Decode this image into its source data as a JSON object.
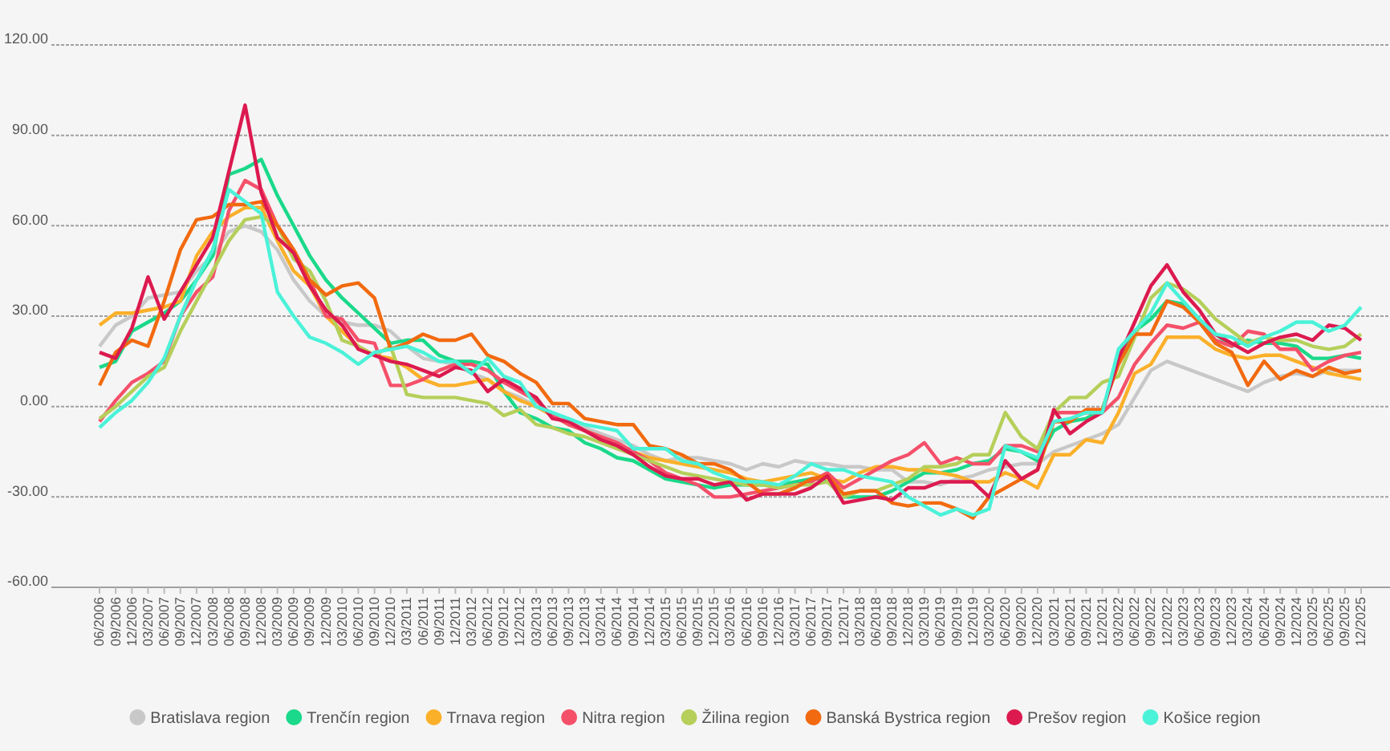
{
  "chart_data": {
    "type": "line",
    "categories": [
      "06/2006",
      "09/2006",
      "12/2006",
      "03/2007",
      "06/2007",
      "09/2007",
      "12/2007",
      "03/2008",
      "06/2008",
      "09/2008",
      "12/2008",
      "03/2009",
      "06/2009",
      "09/2009",
      "12/2009",
      "03/2010",
      "06/2010",
      "09/2010",
      "12/2010",
      "03/2011",
      "06/2011",
      "09/2011",
      "12/2011",
      "03/2012",
      "06/2012",
      "09/2012",
      "12/2012",
      "03/2013",
      "06/2013",
      "09/2013",
      "12/2013",
      "03/2014",
      "06/2014",
      "09/2014",
      "12/2014",
      "03/2015",
      "06/2015",
      "09/2015",
      "12/2015",
      "03/2016",
      "06/2016",
      "09/2016",
      "12/2016",
      "03/2017",
      "06/2017",
      "09/2017",
      "12/2017",
      "03/2018",
      "06/2018",
      "09/2018",
      "12/2018",
      "03/2019",
      "06/2019",
      "09/2019",
      "12/2019",
      "03/2020",
      "06/2020",
      "09/2020",
      "12/2020",
      "03/2021",
      "06/2021",
      "09/2021",
      "12/2021",
      "03/2022",
      "06/2022",
      "09/2022",
      "12/2022",
      "03/2023",
      "06/2023",
      "09/2023",
      "12/2023",
      "03/2024",
      "06/2024",
      "09/2024",
      "12/2024",
      "03/2025",
      "06/2025",
      "09/2025",
      "12/2025"
    ],
    "ylim": [
      -60,
      120
    ],
    "yticks": [
      {
        "value": -60,
        "label": "-60.00"
      },
      {
        "value": -30,
        "label": "-30.00"
      },
      {
        "value": 0,
        "label": "0.00"
      },
      {
        "value": 30,
        "label": "30.00"
      },
      {
        "value": 60,
        "label": "60.00"
      },
      {
        "value": 90,
        "label": "90.00"
      },
      {
        "value": 120,
        "label": "120.00"
      }
    ],
    "grid": "y",
    "legend": "bottom",
    "marker": "none",
    "line_style": "solid",
    "series": [
      {
        "name": "Bratislava region",
        "color": "#c8c8c8",
        "values": [
          20,
          27,
          30,
          36,
          37,
          38,
          45,
          50,
          58,
          60,
          58,
          52,
          42,
          35,
          30,
          28,
          27,
          27,
          25,
          20,
          16,
          15,
          14,
          11,
          9,
          5,
          3,
          0,
          -3,
          -5,
          -7,
          -9,
          -11,
          -13,
          -16,
          -18,
          -17,
          -17,
          -18,
          -19,
          -21,
          -19,
          -20,
          -18,
          -19,
          -19,
          -20,
          -20,
          -21,
          -21,
          -25,
          -25,
          -26,
          -24,
          -23,
          -21,
          -20,
          -19,
          -19,
          -15,
          -13,
          -11,
          -9,
          -6,
          3,
          12,
          15,
          13,
          11,
          9,
          7,
          5,
          8,
          10,
          11,
          10,
          12,
          12,
          12
        ]
      },
      {
        "name": "Trenčín region",
        "color": "#1ad98a",
        "values": [
          13,
          15,
          25,
          28,
          31,
          35,
          42,
          50,
          77,
          79,
          82,
          70,
          60,
          50,
          42,
          36,
          31,
          26,
          21,
          22,
          22,
          17,
          15,
          15,
          14,
          5,
          -2,
          -4,
          -7,
          -8,
          -12,
          -14,
          -17,
          -18,
          -21,
          -24,
          -25,
          -26,
          -27,
          -26,
          -26,
          -26,
          -26,
          -25,
          -24,
          -24,
          -30,
          -30,
          -30,
          -28,
          -25,
          -22,
          -22,
          -21,
          -19,
          -18,
          -14,
          -15,
          -18,
          -8,
          -5,
          -4,
          -1,
          15,
          25,
          29,
          35,
          34,
          28,
          24,
          20,
          22,
          21,
          21,
          20,
          16,
          16,
          17,
          16
        ]
      },
      {
        "name": "Trnava region",
        "color": "#fbb02a",
        "values": [
          27,
          31,
          31,
          32,
          33,
          35,
          50,
          58,
          63,
          66,
          66,
          55,
          45,
          40,
          30,
          25,
          20,
          17,
          16,
          13,
          9,
          7,
          7,
          8,
          9,
          5,
          2,
          0,
          -3,
          -6,
          -8,
          -10,
          -13,
          -15,
          -17,
          -18,
          -19,
          -20,
          -21,
          -22,
          -24,
          -25,
          -24,
          -23,
          -22,
          -24,
          -25,
          -22,
          -20,
          -20,
          -21,
          -21,
          -22,
          -23,
          -25,
          -25,
          -22,
          -24,
          -27,
          -16,
          -16,
          -11,
          -12,
          -2,
          11,
          14,
          23,
          23,
          23,
          19,
          17,
          16,
          17,
          17,
          15,
          13,
          11,
          10,
          9
        ]
      },
      {
        "name": "Nitra region",
        "color": "#f5506a",
        "values": [
          -5,
          2,
          8,
          11,
          15,
          30,
          38,
          43,
          65,
          75,
          72,
          60,
          52,
          42,
          30,
          29,
          22,
          21,
          7,
          7,
          9,
          12,
          14,
          14,
          12,
          8,
          5,
          2,
          -3,
          -6,
          -8,
          -10,
          -12,
          -15,
          -18,
          -22,
          -24,
          -26,
          -30,
          -30,
          -29,
          -28,
          -27,
          -26,
          -25,
          -22,
          -27,
          -24,
          -21,
          -18,
          -16,
          -12,
          -19,
          -17,
          -19,
          -19,
          -13,
          -13,
          -15,
          -2,
          -2,
          -2,
          -2,
          3,
          14,
          21,
          27,
          26,
          28,
          22,
          20,
          25,
          24,
          19,
          19,
          12,
          15,
          17,
          18
        ]
      },
      {
        "name": "Žilina region",
        "color": "#b5cf5a",
        "values": [
          -4,
          0,
          5,
          10,
          13,
          25,
          35,
          45,
          55,
          62,
          63,
          60,
          49,
          45,
          35,
          22,
          20,
          17,
          20,
          4,
          3,
          3,
          3,
          2,
          1,
          -3,
          -1,
          -6,
          -7,
          -9,
          -10,
          -12,
          -14,
          -16,
          -18,
          -20,
          -22,
          -23,
          -24,
          -25,
          -26,
          -26,
          -27,
          -26,
          -26,
          -25,
          -30,
          -28,
          -28,
          -26,
          -24,
          -20,
          -20,
          -19,
          -16,
          -16,
          -2,
          -10,
          -14,
          -2,
          3,
          3,
          8,
          10,
          23,
          36,
          41,
          39,
          35,
          29,
          25,
          21,
          23,
          22,
          22,
          20,
          19,
          20,
          24
        ]
      },
      {
        "name": "Banská Bystrica region",
        "color": "#f26a0f",
        "values": [
          7,
          18,
          22,
          20,
          35,
          52,
          62,
          63,
          67,
          67,
          68,
          60,
          52,
          42,
          37,
          40,
          41,
          36,
          19,
          21,
          24,
          22,
          22,
          24,
          17,
          15,
          11,
          8,
          1,
          1,
          -4,
          -5,
          -6,
          -6,
          -13,
          -14,
          -16,
          -19,
          -19,
          -21,
          -25,
          -29,
          -29,
          -27,
          -24,
          -23,
          -29,
          -28,
          -28,
          -32,
          -33,
          -32,
          -32,
          -34,
          -37,
          -30,
          -27,
          -24,
          -21,
          -5,
          -5,
          -1,
          -1,
          14,
          24,
          24,
          35,
          33,
          28,
          21,
          18,
          7,
          15,
          9,
          12,
          10,
          13,
          11,
          12
        ]
      },
      {
        "name": "Prešov region",
        "color": "#dc1a4f",
        "values": [
          18,
          16,
          26,
          43,
          29,
          38,
          47,
          56,
          78,
          100,
          71,
          56,
          51,
          40,
          32,
          27,
          19,
          17,
          15,
          14,
          12,
          10,
          13,
          12,
          5,
          9,
          6,
          3,
          -4,
          -5,
          -8,
          -11,
          -13,
          -16,
          -20,
          -23,
          -24,
          -24,
          -26,
          -25,
          -31,
          -29,
          -29,
          -29,
          -27,
          -23,
          -32,
          -31,
          -30,
          -31,
          -27,
          -27,
          -25,
          -25,
          -25,
          -30,
          -18,
          -24,
          -21,
          -1,
          -9,
          -5,
          -2,
          16,
          28,
          40,
          47,
          38,
          32,
          24,
          21,
          18,
          21,
          23,
          24,
          22,
          27,
          26,
          22
        ]
      },
      {
        "name": "Košice region",
        "color": "#4af2d8",
        "values": [
          -7,
          -2,
          2,
          8,
          16,
          30,
          42,
          52,
          72,
          68,
          64,
          38,
          30,
          23,
          21,
          18,
          14,
          18,
          19,
          20,
          18,
          15,
          15,
          11,
          16,
          10,
          8,
          0,
          -2,
          -4,
          -6,
          -7,
          -8,
          -14,
          -14,
          -14,
          -18,
          -19,
          -22,
          -24,
          -25,
          -25,
          -26,
          -23,
          -19,
          -21,
          -21,
          -23,
          -24,
          -25,
          -30,
          -33,
          -36,
          -34,
          -36,
          -34,
          -13,
          -15,
          -17,
          -5,
          -4,
          -2,
          -2,
          19,
          25,
          31,
          41,
          35,
          29,
          24,
          23,
          20,
          23,
          25,
          28,
          28,
          25,
          27,
          33
        ]
      }
    ]
  }
}
